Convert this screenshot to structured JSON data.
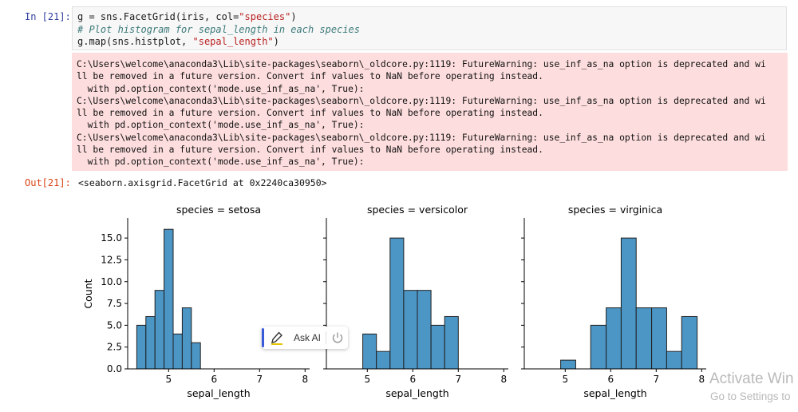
{
  "cell": {
    "in_prompt": "In [21]:",
    "out_prompt": "Out[21]:",
    "code_lines": [
      [
        {
          "t": "g = sns.FacetGrid(iris, col=",
          "c": "plain"
        },
        {
          "t": "\"species\"",
          "c": "str"
        },
        {
          "t": ")",
          "c": "plain"
        }
      ],
      [
        {
          "t": "# Plot histogram for sepal_length in each species",
          "c": "comment"
        }
      ],
      [
        {
          "t": "g.map(sns.histplot, ",
          "c": "plain"
        },
        {
          "t": "\"sepal_length\"",
          "c": "str"
        },
        {
          "t": ")",
          "c": "plain"
        }
      ]
    ],
    "stderr_lines": [
      "C:\\Users\\welcome\\anaconda3\\Lib\\site-packages\\seaborn\\_oldcore.py:1119: FutureWarning: use_inf_as_na option is deprecated and wi",
      "ll be removed in a future version. Convert inf values to NaN before operating instead.",
      "  with pd.option_context('mode.use_inf_as_na', True):",
      "C:\\Users\\welcome\\anaconda3\\Lib\\site-packages\\seaborn\\_oldcore.py:1119: FutureWarning: use_inf_as_na option is deprecated and wi",
      "ll be removed in a future version. Convert inf values to NaN before operating instead.",
      "  with pd.option_context('mode.use_inf_as_na', True):",
      "C:\\Users\\welcome\\anaconda3\\Lib\\site-packages\\seaborn\\_oldcore.py:1119: FutureWarning: use_inf_as_na option is deprecated and wi",
      "ll be removed in a future version. Convert inf values to NaN before operating instead.",
      "  with pd.option_context('mode.use_inf_as_na', True):"
    ],
    "output_repr": "<seaborn.axisgrid.FacetGrid at 0x2240ca30950>"
  },
  "chart_data": {
    "type": "bar",
    "subtype": "histogram-facets",
    "bar_color": "#4c96c6",
    "bar_edge_color": "#1f1f1f",
    "ylabel": "Count",
    "ylim": [
      0,
      17.3
    ],
    "yticks": [
      0.0,
      2.5,
      5.0,
      7.5,
      10.0,
      12.5,
      15.0
    ],
    "ytick_labels": [
      "0.0",
      "2.5",
      "5.0",
      "7.5",
      "10.0",
      "12.5",
      "15.0"
    ],
    "grid": false,
    "sharey": true,
    "panels": [
      {
        "title": "species = setosa",
        "xlabel": "sepal_length",
        "xlim": [
          4.1,
          8.1
        ],
        "xticks": [
          5,
          6,
          7,
          8
        ],
        "bins": [
          {
            "x0": 4.3,
            "x1": 4.5,
            "count": 5
          },
          {
            "x0": 4.5,
            "x1": 4.7,
            "count": 6
          },
          {
            "x0": 4.7,
            "x1": 4.9,
            "count": 9
          },
          {
            "x0": 4.9,
            "x1": 5.1,
            "count": 16
          },
          {
            "x0": 5.1,
            "x1": 5.3,
            "count": 4
          },
          {
            "x0": 5.3,
            "x1": 5.5,
            "count": 7
          },
          {
            "x0": 5.5,
            "x1": 5.7,
            "count": 3
          }
        ]
      },
      {
        "title": "species = versicolor",
        "xlabel": "sepal_length",
        "xlim": [
          4.1,
          8.1
        ],
        "xticks": [
          5,
          6,
          7,
          8
        ],
        "bins": [
          {
            "x0": 4.9,
            "x1": 5.2,
            "count": 4
          },
          {
            "x0": 5.2,
            "x1": 5.5,
            "count": 2
          },
          {
            "x0": 5.5,
            "x1": 5.8,
            "count": 15
          },
          {
            "x0": 5.8,
            "x1": 6.1,
            "count": 9
          },
          {
            "x0": 6.1,
            "x1": 6.4,
            "count": 9
          },
          {
            "x0": 6.4,
            "x1": 6.7,
            "count": 5
          },
          {
            "x0": 6.7,
            "x1": 7.0,
            "count": 6
          }
        ]
      },
      {
        "title": "species = virginica",
        "xlabel": "sepal_length",
        "xlim": [
          4.1,
          8.1
        ],
        "xticks": [
          5,
          6,
          7,
          8
        ],
        "bins": [
          {
            "x0": 4.9,
            "x1": 5.23,
            "count": 1
          },
          {
            "x0": 5.23,
            "x1": 5.56,
            "count": 0
          },
          {
            "x0": 5.56,
            "x1": 5.9,
            "count": 5
          },
          {
            "x0": 5.9,
            "x1": 6.23,
            "count": 7
          },
          {
            "x0": 6.23,
            "x1": 6.56,
            "count": 15
          },
          {
            "x0": 6.56,
            "x1": 6.9,
            "count": 7
          },
          {
            "x0": 6.9,
            "x1": 7.23,
            "count": 7
          },
          {
            "x0": 7.23,
            "x1": 7.56,
            "count": 2
          },
          {
            "x0": 7.56,
            "x1": 7.9,
            "count": 6
          }
        ]
      }
    ]
  },
  "ask_ai": {
    "label": "Ask AI",
    "pen_icon": "pen-icon",
    "power_icon": "power-icon"
  },
  "watermark": {
    "line1": "Activate Win",
    "line2": "Go to Settings to"
  }
}
